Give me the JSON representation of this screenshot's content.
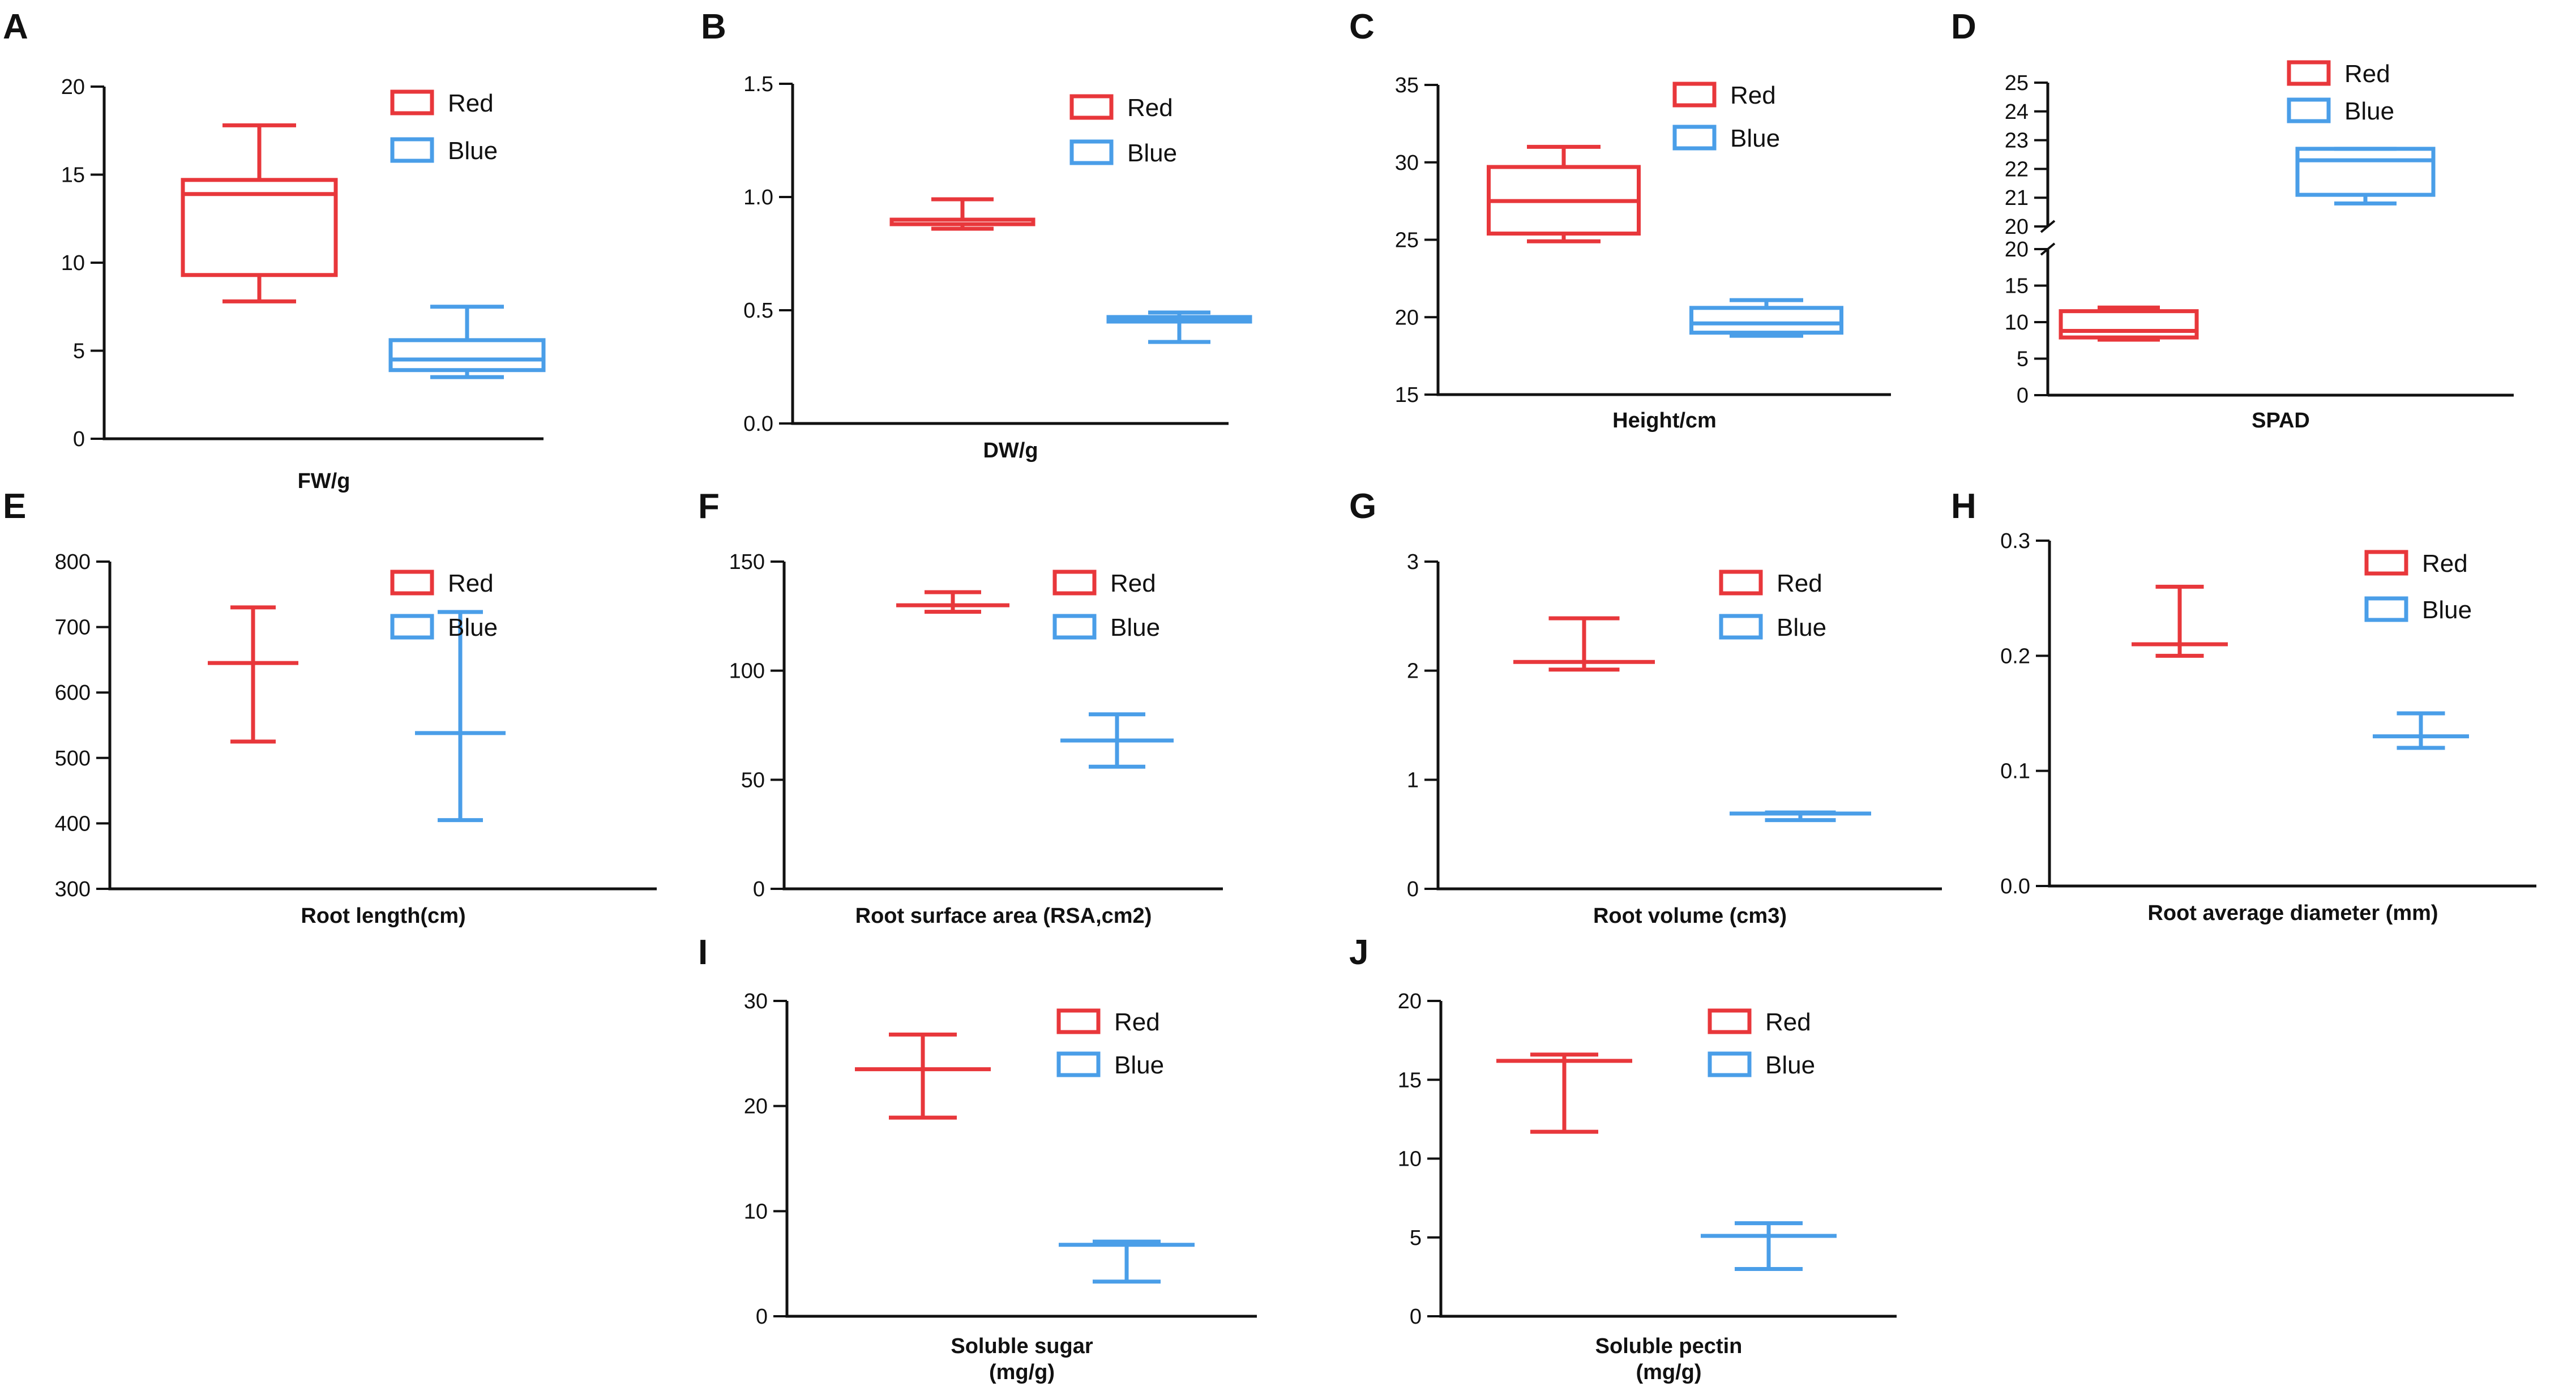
{
  "colors": {
    "red": "#e8373b",
    "blue": "#4a9ee8",
    "axis": "#111111"
  },
  "chart_data": [
    {
      "id": "A",
      "panel_letter": "A",
      "type": "boxplot",
      "xlabel": "FW/g",
      "ylim": [
        0,
        20
      ],
      "yticks": [
        0,
        5,
        10,
        15,
        20
      ],
      "tick_labels": [
        "0",
        "5",
        "10",
        "15",
        "20"
      ],
      "legend": [
        "Red",
        "Blue"
      ],
      "series": [
        {
          "name": "Red",
          "min": 7.8,
          "q1": 9.3,
          "median": 13.9,
          "q3": 14.7,
          "max": 17.8
        },
        {
          "name": "Blue",
          "min": 3.5,
          "q1": 3.9,
          "median": 4.5,
          "q3": 5.6,
          "max": 7.5
        }
      ]
    },
    {
      "id": "B",
      "panel_letter": "B",
      "type": "boxplot",
      "xlabel": "DW/g",
      "ylim": [
        0,
        1.5
      ],
      "yticks": [
        0,
        0.5,
        1.0,
        1.5
      ],
      "tick_labels": [
        "0.0",
        "0.5",
        "1.0",
        "1.5"
      ],
      "legend": [
        "Red",
        "Blue"
      ],
      "series": [
        {
          "name": "Red",
          "min": 0.86,
          "q1": 0.88,
          "median": 0.9,
          "q3": 0.9,
          "max": 0.99
        },
        {
          "name": "Blue",
          "min": 0.36,
          "q1": 0.45,
          "median": 0.46,
          "q3": 0.47,
          "max": 0.49
        }
      ]
    },
    {
      "id": "C",
      "panel_letter": "C",
      "type": "boxplot",
      "xlabel": "Height/cm",
      "ylim": [
        15,
        35
      ],
      "yticks": [
        15,
        20,
        25,
        30,
        35
      ],
      "tick_labels": [
        "15",
        "20",
        "25",
        "30",
        "35"
      ],
      "legend": [
        "Red",
        "Blue"
      ],
      "series": [
        {
          "name": "Red",
          "min": 24.9,
          "q1": 25.4,
          "median": 27.5,
          "q3": 29.7,
          "max": 31.0
        },
        {
          "name": "Blue",
          "min": 18.8,
          "q1": 19.0,
          "median": 19.6,
          "q3": 20.6,
          "max": 21.1
        }
      ]
    },
    {
      "id": "D",
      "panel_letter": "D",
      "type": "boxplot",
      "xlabel": "SPAD",
      "broken_axis": true,
      "ylim_lower": [
        0,
        20
      ],
      "ylim_upper": [
        20,
        25
      ],
      "yticks_lower": [
        0,
        5,
        10,
        15,
        20
      ],
      "tick_labels_lower": [
        "0",
        "5",
        "10",
        "15",
        "20"
      ],
      "yticks_upper": [
        20,
        21,
        22,
        23,
        24,
        25
      ],
      "tick_labels_upper": [
        "20",
        "21",
        "22",
        "23",
        "24",
        "25"
      ],
      "legend": [
        "Red",
        "Blue"
      ],
      "series": [
        {
          "name": "Red",
          "min": 7.6,
          "q1": 7.9,
          "median": 8.8,
          "q3": 11.5,
          "max": 12.0
        },
        {
          "name": "Blue",
          "min": 20.8,
          "q1": 21.1,
          "median": 22.3,
          "q3": 22.7,
          "max": 22.7
        }
      ]
    },
    {
      "id": "E",
      "panel_letter": "E",
      "type": "mean_error",
      "xlabel": "Root length(cm)",
      "ylim": [
        300,
        800
      ],
      "yticks": [
        300,
        400,
        500,
        600,
        700,
        800
      ],
      "tick_labels": [
        "300",
        "400",
        "500",
        "600",
        "700",
        "800"
      ],
      "legend": [
        "Red",
        "Blue"
      ],
      "series": [
        {
          "name": "Red",
          "low": 525,
          "mean": 645,
          "high": 730
        },
        {
          "name": "Blue",
          "low": 405,
          "mean": 538,
          "high": 723
        }
      ]
    },
    {
      "id": "F",
      "panel_letter": "F",
      "type": "mean_error",
      "xlabel": "Root surface area (RSA,cm2)",
      "ylim": [
        0,
        150
      ],
      "yticks": [
        0,
        50,
        100,
        150
      ],
      "tick_labels": [
        "0",
        "50",
        "100",
        "150"
      ],
      "legend": [
        "Red",
        "Blue"
      ],
      "series": [
        {
          "name": "Red",
          "low": 127,
          "mean": 130,
          "high": 136
        },
        {
          "name": "Blue",
          "low": 56,
          "mean": 68,
          "high": 80
        }
      ]
    },
    {
      "id": "G",
      "panel_letter": "G",
      "type": "mean_error",
      "xlabel": "Root volume (cm3)",
      "ylim": [
        0,
        3
      ],
      "yticks": [
        0,
        1,
        2,
        3
      ],
      "tick_labels": [
        "0",
        "1",
        "2",
        "3"
      ],
      "legend": [
        "Red",
        "Blue"
      ],
      "series": [
        {
          "name": "Red",
          "low": 2.01,
          "mean": 2.08,
          "high": 2.48
        },
        {
          "name": "Blue",
          "low": 0.63,
          "mean": 0.69,
          "high": 0.7
        }
      ]
    },
    {
      "id": "H",
      "panel_letter": "H",
      "type": "mean_error",
      "xlabel": "Root average diameter (mm)",
      "ylim": [
        0,
        0.3
      ],
      "yticks": [
        0,
        0.1,
        0.2,
        0.3
      ],
      "tick_labels": [
        "0.0",
        "0.1",
        "0.2",
        "0.3"
      ],
      "legend": [
        "Red",
        "Blue"
      ],
      "series": [
        {
          "name": "Red",
          "low": 0.2,
          "mean": 0.21,
          "high": 0.26
        },
        {
          "name": "Blue",
          "low": 0.12,
          "mean": 0.13,
          "high": 0.15
        }
      ]
    },
    {
      "id": "I",
      "panel_letter": "I",
      "type": "mean_error",
      "xlabel": "Soluble sugar\n(mg/g)",
      "ylim": [
        0,
        30
      ],
      "yticks": [
        0,
        10,
        20,
        30
      ],
      "tick_labels": [
        "0",
        "10",
        "20",
        "30"
      ],
      "legend": [
        "Red",
        "Blue"
      ],
      "series": [
        {
          "name": "Red",
          "low": 18.9,
          "mean": 23.5,
          "high": 26.8
        },
        {
          "name": "Blue",
          "low": 3.3,
          "mean": 6.8,
          "high": 7.1
        }
      ]
    },
    {
      "id": "J",
      "panel_letter": "J",
      "type": "mean_error",
      "xlabel": "Soluble pectin\n(mg/g)",
      "ylim": [
        0,
        20
      ],
      "yticks": [
        0,
        5,
        10,
        15,
        20
      ],
      "tick_labels": [
        "0",
        "5",
        "10",
        "15",
        "20"
      ],
      "legend": [
        "Red",
        "Blue"
      ],
      "series": [
        {
          "name": "Red",
          "low": 11.7,
          "mean": 16.2,
          "high": 16.6
        },
        {
          "name": "Blue",
          "low": 3.0,
          "mean": 5.1,
          "high": 5.9
        }
      ]
    }
  ]
}
